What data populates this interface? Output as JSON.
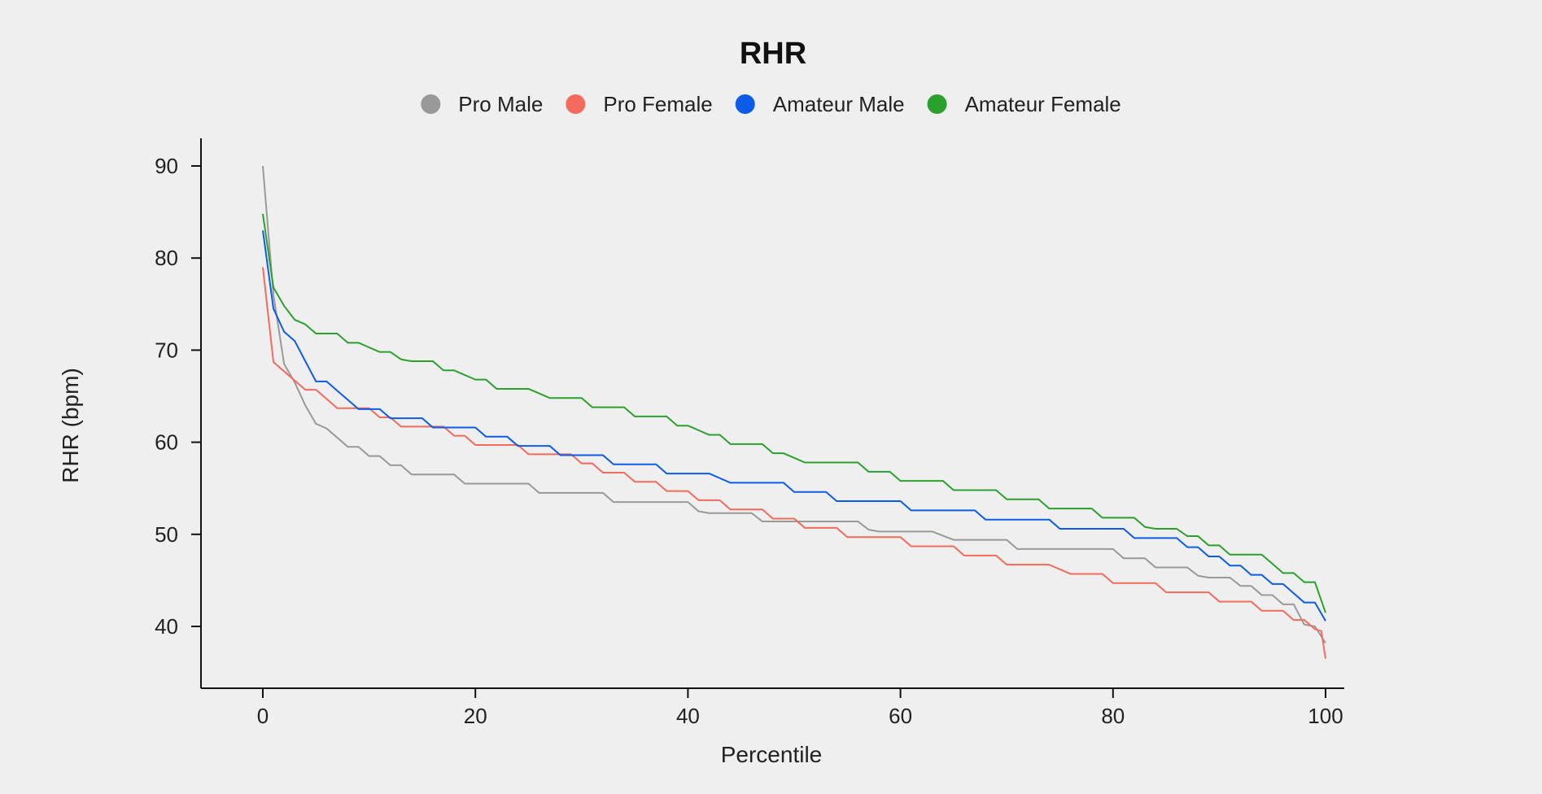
{
  "chart_data": {
    "type": "line",
    "title": "RHR",
    "xlabel": "Percentile",
    "ylabel": "RHR (bpm)",
    "xlim": [
      -6,
      102
    ],
    "ylim": [
      33.3,
      93
    ],
    "xticks": [
      0,
      20,
      40,
      60,
      80,
      100
    ],
    "yticks": [
      40,
      50,
      60,
      70,
      80,
      90
    ],
    "grid": false,
    "legend_position": "top-center",
    "series": [
      {
        "name": "Pro Male",
        "color": "#999999",
        "points": [
          [
            0,
            90
          ],
          [
            1,
            76
          ],
          [
            2,
            68.5
          ],
          [
            3,
            66.5
          ],
          [
            4,
            64
          ],
          [
            5,
            62
          ],
          [
            6,
            61.5
          ],
          [
            7,
            60.5
          ],
          [
            8,
            59.5
          ],
          [
            9,
            59.5
          ],
          [
            10,
            58.5
          ],
          [
            11,
            58.5
          ],
          [
            12,
            57.5
          ],
          [
            13,
            57.5
          ],
          [
            14,
            56.5
          ],
          [
            15,
            56.5
          ],
          [
            18,
            56.5
          ],
          [
            19,
            55.5
          ],
          [
            20,
            55.5
          ],
          [
            25,
            55.5
          ],
          [
            26,
            54.5
          ],
          [
            32,
            54.5
          ],
          [
            33,
            53.5
          ],
          [
            40,
            53.5
          ],
          [
            41,
            52.5
          ],
          [
            42,
            52.3
          ],
          [
            46,
            52.3
          ],
          [
            47,
            51.4
          ],
          [
            56,
            51.4
          ],
          [
            57,
            50.5
          ],
          [
            58,
            50.3
          ],
          [
            63,
            50.3
          ],
          [
            65,
            49.4
          ],
          [
            70,
            49.4
          ],
          [
            71,
            48.4
          ],
          [
            80,
            48.4
          ],
          [
            81,
            47.4
          ],
          [
            83,
            47.4
          ],
          [
            84,
            46.4
          ],
          [
            87,
            46.4
          ],
          [
            88,
            45.5
          ],
          [
            89,
            45.3
          ],
          [
            91,
            45.3
          ],
          [
            92,
            44.4
          ],
          [
            93,
            44.4
          ],
          [
            94,
            43.4
          ],
          [
            95,
            43.4
          ],
          [
            96,
            42.4
          ],
          [
            97,
            42.4
          ],
          [
            98,
            40.2
          ],
          [
            99,
            40
          ],
          [
            100,
            38.2
          ]
        ]
      },
      {
        "name": "Pro Female",
        "color": "#f26b5b",
        "points": [
          [
            0,
            79
          ],
          [
            1,
            68.7
          ],
          [
            2,
            67.7
          ],
          [
            3,
            66.7
          ],
          [
            4,
            65.7
          ],
          [
            5,
            65.7
          ],
          [
            6,
            64.7
          ],
          [
            7,
            63.7
          ],
          [
            10,
            63.7
          ],
          [
            11,
            62.7
          ],
          [
            12,
            62.7
          ],
          [
            13,
            61.7
          ],
          [
            15,
            61.7
          ],
          [
            17,
            61.7
          ],
          [
            18,
            60.7
          ],
          [
            19,
            60.7
          ],
          [
            20,
            59.7
          ],
          [
            24,
            59.7
          ],
          [
            25,
            58.7
          ],
          [
            29,
            58.7
          ],
          [
            30,
            57.7
          ],
          [
            31,
            57.7
          ],
          [
            32,
            56.7
          ],
          [
            34,
            56.7
          ],
          [
            35,
            55.7
          ],
          [
            37,
            55.7
          ],
          [
            38,
            54.7
          ],
          [
            40,
            54.7
          ],
          [
            41,
            53.7
          ],
          [
            43,
            53.7
          ],
          [
            44,
            52.7
          ],
          [
            47,
            52.7
          ],
          [
            48,
            51.7
          ],
          [
            50,
            51.7
          ],
          [
            51,
            50.7
          ],
          [
            54,
            50.7
          ],
          [
            55,
            49.7
          ],
          [
            60,
            49.7
          ],
          [
            61,
            48.7
          ],
          [
            65,
            48.7
          ],
          [
            66,
            47.7
          ],
          [
            69,
            47.7
          ],
          [
            70,
            46.7
          ],
          [
            74,
            46.7
          ],
          [
            75,
            46.2
          ],
          [
            76,
            45.7
          ],
          [
            79,
            45.7
          ],
          [
            80,
            44.7
          ],
          [
            84,
            44.7
          ],
          [
            85,
            43.7
          ],
          [
            89,
            43.7
          ],
          [
            90,
            42.7
          ],
          [
            93,
            42.7
          ],
          [
            94,
            41.7
          ],
          [
            96,
            41.7
          ],
          [
            97,
            40.7
          ],
          [
            98,
            40.7
          ],
          [
            99,
            39.7
          ],
          [
            99.6,
            39.5
          ],
          [
            100,
            36.5
          ]
        ]
      },
      {
        "name": "Amateur Male",
        "color": "#0b5ce6",
        "points": [
          [
            0,
            83
          ],
          [
            1,
            74.5
          ],
          [
            2,
            72
          ],
          [
            3,
            71
          ],
          [
            4,
            68.8
          ],
          [
            5,
            66.6
          ],
          [
            6,
            66.6
          ],
          [
            7,
            65.6
          ],
          [
            8,
            64.6
          ],
          [
            9,
            63.6
          ],
          [
            11,
            63.6
          ],
          [
            12,
            62.6
          ],
          [
            15,
            62.6
          ],
          [
            16,
            61.6
          ],
          [
            20,
            61.6
          ],
          [
            21,
            60.6
          ],
          [
            23,
            60.6
          ],
          [
            24,
            59.6
          ],
          [
            27,
            59.6
          ],
          [
            28,
            58.6
          ],
          [
            32,
            58.6
          ],
          [
            33,
            57.6
          ],
          [
            37,
            57.6
          ],
          [
            38,
            56.6
          ],
          [
            42,
            56.6
          ],
          [
            43,
            56.1
          ],
          [
            44,
            55.6
          ],
          [
            49,
            55.6
          ],
          [
            50,
            54.6
          ],
          [
            53,
            54.6
          ],
          [
            54,
            53.6
          ],
          [
            60,
            53.6
          ],
          [
            61,
            52.6
          ],
          [
            67,
            52.6
          ],
          [
            68,
            51.6
          ],
          [
            74,
            51.6
          ],
          [
            75,
            50.6
          ],
          [
            81,
            50.6
          ],
          [
            82,
            49.6
          ],
          [
            86,
            49.6
          ],
          [
            87,
            48.6
          ],
          [
            88,
            48.6
          ],
          [
            89,
            47.6
          ],
          [
            90,
            47.6
          ],
          [
            91,
            46.6
          ],
          [
            92,
            46.6
          ],
          [
            93,
            45.6
          ],
          [
            94,
            45.6
          ],
          [
            95,
            44.6
          ],
          [
            96,
            44.6
          ],
          [
            97,
            43.6
          ],
          [
            98,
            42.6
          ],
          [
            99,
            42.6
          ],
          [
            100,
            40.6
          ]
        ]
      },
      {
        "name": "Amateur Female",
        "color": "#2ca02c",
        "points": [
          [
            0,
            84.8
          ],
          [
            1,
            76.8
          ],
          [
            2,
            74.8
          ],
          [
            3,
            73.3
          ],
          [
            4,
            72.8
          ],
          [
            5,
            71.8
          ],
          [
            7,
            71.8
          ],
          [
            8,
            70.8
          ],
          [
            9,
            70.8
          ],
          [
            10,
            70.3
          ],
          [
            11,
            69.8
          ],
          [
            12,
            69.8
          ],
          [
            13,
            69
          ],
          [
            14,
            68.8
          ],
          [
            16,
            68.8
          ],
          [
            17,
            67.8
          ],
          [
            18,
            67.8
          ],
          [
            19,
            67.3
          ],
          [
            20,
            66.8
          ],
          [
            21,
            66.8
          ],
          [
            22,
            65.8
          ],
          [
            25,
            65.8
          ],
          [
            26,
            65.3
          ],
          [
            27,
            64.8
          ],
          [
            30,
            64.8
          ],
          [
            31,
            63.8
          ],
          [
            34,
            63.8
          ],
          [
            35,
            62.8
          ],
          [
            38,
            62.8
          ],
          [
            39,
            61.8
          ],
          [
            40,
            61.8
          ],
          [
            41,
            61.3
          ],
          [
            42,
            60.8
          ],
          [
            43,
            60.8
          ],
          [
            44,
            59.8
          ],
          [
            47,
            59.8
          ],
          [
            48,
            58.8
          ],
          [
            49,
            58.8
          ],
          [
            50,
            58.3
          ],
          [
            51,
            57.8
          ],
          [
            52,
            57.8
          ],
          [
            56,
            57.8
          ],
          [
            57,
            56.8
          ],
          [
            59,
            56.8
          ],
          [
            60,
            55.8
          ],
          [
            64,
            55.8
          ],
          [
            65,
            54.8
          ],
          [
            69,
            54.8
          ],
          [
            70,
            53.8
          ],
          [
            73,
            53.8
          ],
          [
            74,
            52.8
          ],
          [
            78,
            52.8
          ],
          [
            79,
            51.8
          ],
          [
            82,
            51.8
          ],
          [
            83,
            50.8
          ],
          [
            84,
            50.6
          ],
          [
            86,
            50.6
          ],
          [
            87,
            49.8
          ],
          [
            88,
            49.8
          ],
          [
            89,
            48.8
          ],
          [
            90,
            48.8
          ],
          [
            91,
            47.8
          ],
          [
            94,
            47.8
          ],
          [
            95,
            46.8
          ],
          [
            96,
            45.8
          ],
          [
            97,
            45.8
          ],
          [
            98,
            44.8
          ],
          [
            99,
            44.8
          ],
          [
            100,
            41.5
          ]
        ]
      }
    ]
  }
}
